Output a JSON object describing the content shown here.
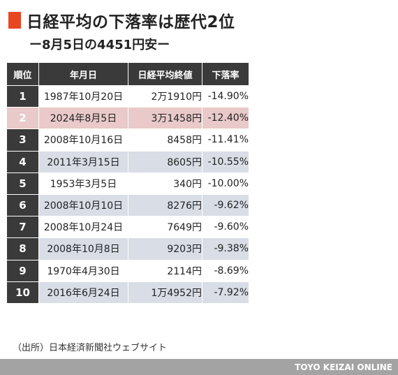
{
  "title": "日経平均の下落率は歴代2位",
  "subtitle": "ー8月5日の4451円安ー",
  "colors": {
    "accent": "#e8471f",
    "header_bg": "#3a3a3a",
    "highlight": "#e9c9c9",
    "stripe": "#d8dde6"
  },
  "chart_data": {
    "type": "table",
    "title": "日経平均の下落率は歴代2位",
    "subtitle": "ー8月5日の4451円安ー",
    "columns": [
      "順位",
      "年月日",
      "日経平均終値",
      "下落率"
    ],
    "rows": [
      {
        "rank": "1",
        "date": "1987年10月20日",
        "close": "2万1910円",
        "pct": "-14.90%"
      },
      {
        "rank": "2",
        "date": "2024年8月5日",
        "close": "3万1458円",
        "pct": "-12.40%"
      },
      {
        "rank": "3",
        "date": "2008年10月16日",
        "close": "8458円",
        "pct": "-11.41%"
      },
      {
        "rank": "4",
        "date": "2011年3月15日",
        "close": "8605円",
        "pct": "-10.55%"
      },
      {
        "rank": "5",
        "date": "1953年3月5日",
        "close": "340円",
        "pct": "-10.00%"
      },
      {
        "rank": "6",
        "date": "2008年10月10日",
        "close": "8276円",
        "pct": "-9.62%"
      },
      {
        "rank": "7",
        "date": "2008年10月24日",
        "close": "7649円",
        "pct": "-9.60%"
      },
      {
        "rank": "8",
        "date": "2008年10月8日",
        "close": "9203円",
        "pct": "-9.38%"
      },
      {
        "rank": "9",
        "date": "1970年4月30日",
        "close": "2114円",
        "pct": "-8.69%"
      },
      {
        "rank": "10",
        "date": "2016年6月24日",
        "close": "1万4952円",
        "pct": "-7.92%"
      }
    ],
    "highlight_rank": "2"
  },
  "source": "（出所）日本経済新聞社ウェブサイト",
  "brand": "TOYO KEIZAI ONLINE"
}
